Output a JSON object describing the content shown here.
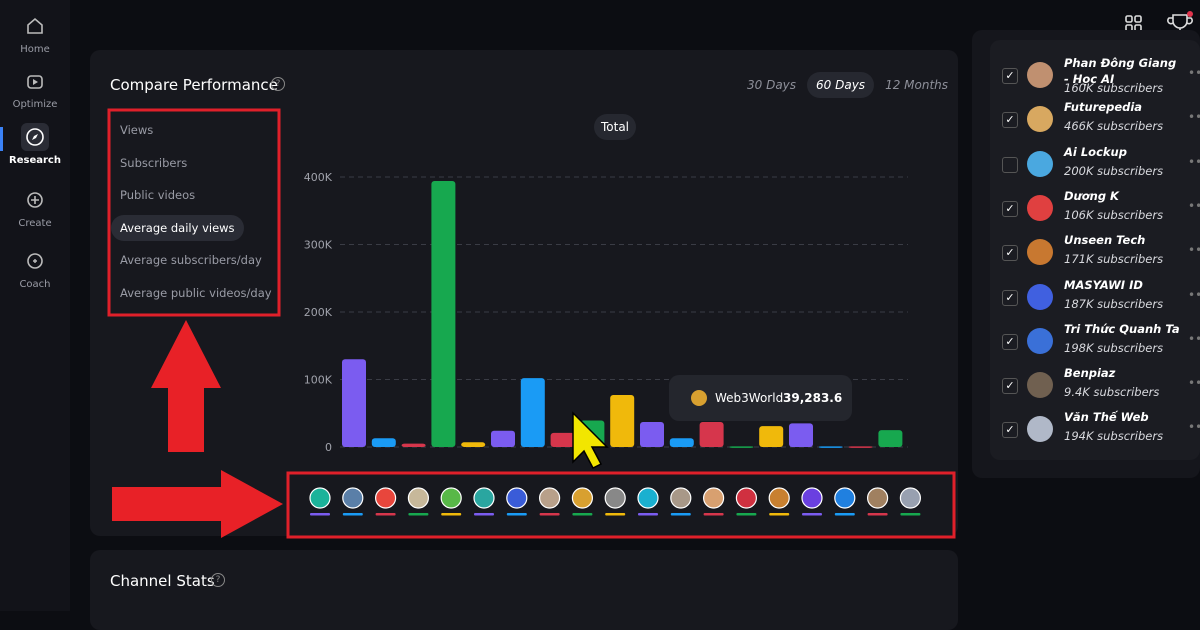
{
  "sidebar": {
    "items": [
      "Home",
      "Optimize",
      "Research",
      "Create",
      "Coach"
    ]
  },
  "panel": {
    "title": "Compare Performance",
    "ranges": [
      "30 Days",
      "60 Days",
      "12 Months"
    ],
    "metrics": [
      "Views",
      "Subscribers",
      "Public videos",
      "Average daily views",
      "Average subscribers/day",
      "Average public videos/day"
    ]
  },
  "chart": {
    "type": "bar",
    "label": "Total",
    "values": [
      130000,
      13000,
      5000,
      394000,
      7000,
      24000,
      102000,
      21000,
      39283.6,
      77000,
      37000,
      13000,
      37000,
      1000,
      31000,
      35000,
      1000,
      1000,
      25000
    ],
    "colors": [
      "#7b5cf0",
      "#1a9bf5",
      "#d6364c",
      "#17a84f",
      "#f0b90b",
      "#7b5cf0",
      "#1a9bf5",
      "#d6364c",
      "#17a84f",
      "#f0b90b",
      "#7b5cf0",
      "#1a9bf5",
      "#d6364c",
      "#17a84f",
      "#f0b90b",
      "#7b5cf0",
      "#1a9bf5",
      "#d6364c",
      "#17a84f"
    ],
    "ylim": [
      0,
      400000
    ],
    "yticks": [
      0,
      {
        "value": 100000,
        "label": "100K"
      },
      {
        "value": 200000,
        "label": "200K"
      },
      {
        "value": 300000,
        "label": "300K"
      },
      {
        "value": 400000,
        "label": "400K"
      }
    ],
    "grid": true
  },
  "tooltip": {
    "name": "Web3World",
    "value": "39,283.6"
  },
  "channels": [
    {
      "name": "Phan Đông Giang - Học AI",
      "subscribers": "160K subscribers",
      "checked": true
    },
    {
      "name": "Futurepedia",
      "subscribers": "466K subscribers",
      "checked": true
    },
    {
      "name": "Ai Lockup",
      "subscribers": "200K subscribers",
      "checked": false
    },
    {
      "name": "Dương K",
      "subscribers": "106K subscribers",
      "checked": true
    },
    {
      "name": "Unseen Tech",
      "subscribers": "171K subscribers",
      "checked": true
    },
    {
      "name": "MASYAWI ID",
      "subscribers": "187K subscribers",
      "checked": true
    },
    {
      "name": "Tri Thức Quanh Ta",
      "subscribers": "198K subscribers",
      "checked": true
    },
    {
      "name": "Benpiaz",
      "subscribers": "9.4K subscribers",
      "checked": true
    },
    {
      "name": "Văn Thế Web",
      "subscribers": "194K subscribers",
      "checked": true
    }
  ],
  "stats": {
    "title": "Channel Stats"
  }
}
